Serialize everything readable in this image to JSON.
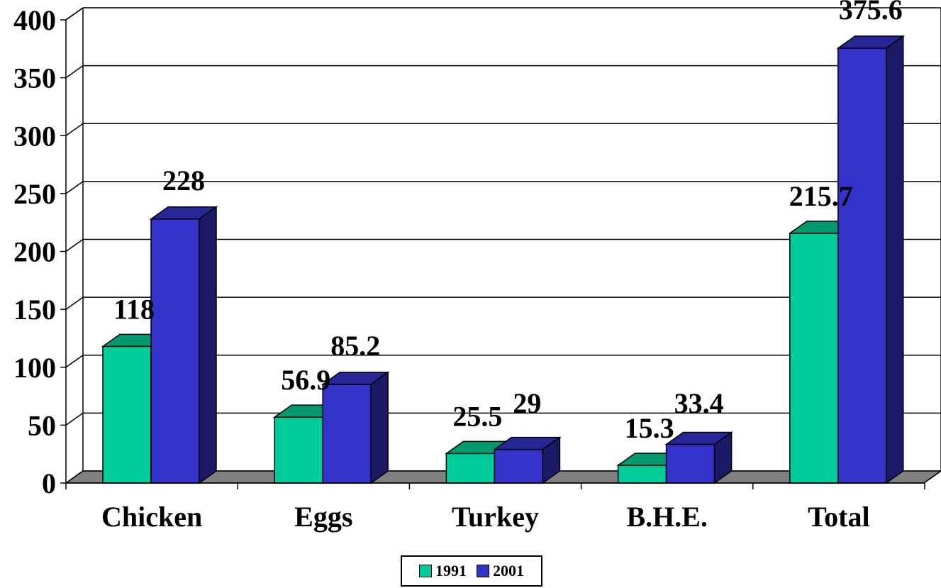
{
  "chart_data": {
    "type": "bar",
    "categories": [
      "Chicken",
      "Eggs",
      "Turkey",
      "B.H.E.",
      "Total"
    ],
    "series": [
      {
        "name": "1991",
        "values": [
          118,
          56.9,
          25.5,
          15.3,
          215.7
        ],
        "color": "#00CC99",
        "top_color": "#009970"
      },
      {
        "name": "2001",
        "values": [
          228,
          85.2,
          29,
          33.4,
          375.6
        ],
        "color": "#3333CC",
        "top_color": "#262699",
        "side_color": "#1A1A66"
      }
    ],
    "data_labels": [
      [
        "118",
        "56.9",
        "25.5",
        "15.3",
        "215.7"
      ],
      [
        "228",
        "85.2",
        "29",
        "33.4",
        "375.6"
      ]
    ],
    "yticks": [
      "0",
      "50",
      "100",
      "150",
      "200",
      "250",
      "300",
      "350",
      "400"
    ],
    "ylim": [
      0,
      400
    ],
    "grid": true,
    "floor_color": "#808080",
    "legend_position": "bottom",
    "title": "",
    "xlabel": "",
    "ylabel": ""
  },
  "legend": {
    "items": [
      {
        "label": "1991",
        "color": "#00CC99"
      },
      {
        "label": "2001",
        "color": "#3333CC"
      }
    ]
  }
}
